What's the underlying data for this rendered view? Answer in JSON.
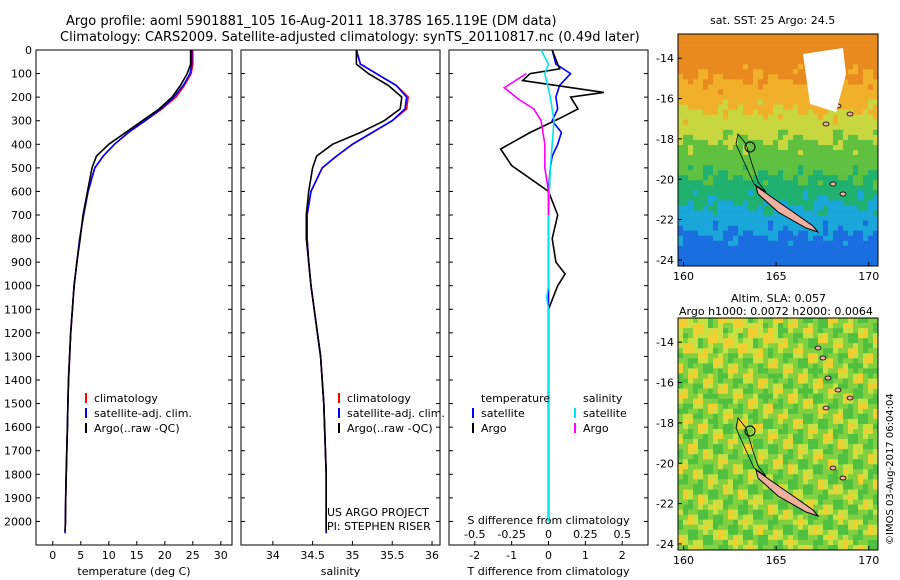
{
  "header": {
    "line1": "Argo profile: aoml 5901881_105 16-Aug-2011 18.378S 165.119E (DM data)",
    "line2": "Climatology: CARS2009. Satellite-adjusted climatology: synTS_20110817.nc (0.49d later)"
  },
  "credits": {
    "project": "US ARGO PROJECT",
    "pi": "PI: STEPHEN RISER"
  },
  "stamp": "©IMOS 03-Aug-2017 06:04:04",
  "map_sst": {
    "title": "sat. SST: 25 Argo: 24.5",
    "xticks": [
      "160",
      "165",
      "170"
    ],
    "yticks": [
      "-14",
      "-16",
      "-18",
      "-20",
      "-22",
      "-24"
    ]
  },
  "map_sla": {
    "title1": "Altim. SLA: 0.057",
    "title2": "Argo h1000: 0.0072 h2000: 0.0064",
    "xticks": [
      "160",
      "165",
      "170"
    ],
    "yticks": [
      "-14",
      "-16",
      "-18",
      "-20",
      "-22",
      "-24"
    ]
  },
  "colors": {
    "clim": "#ff0000",
    "sat": "#0000ff",
    "argo": "#000000",
    "sat_s": "#00e5ee",
    "argo_s": "#ff00ff"
  },
  "chart_data": [
    {
      "type": "line",
      "name": "temperature-profile",
      "xlabel": "temperature (deg C)",
      "ylabel": "",
      "xlim": [
        -3,
        32
      ],
      "ylim": [
        2100,
        0
      ],
      "xticks": [
        0,
        5,
        10,
        15,
        20,
        25,
        30
      ],
      "yticks": [
        0,
        100,
        200,
        300,
        400,
        500,
        600,
        700,
        800,
        900,
        1000,
        1100,
        1200,
        1300,
        1400,
        1500,
        1600,
        1700,
        1800,
        1900,
        2000
      ],
      "legend": [
        "climatology",
        "satellite-adj. clim.",
        "Argo(..raw -QC)"
      ],
      "series": [
        {
          "name": "climatology",
          "color_key": "clim",
          "points": [
            [
              25,
              0
            ],
            [
              25,
              60
            ],
            [
              24.7,
              100
            ],
            [
              23.5,
              150
            ],
            [
              22,
              200
            ],
            [
              19.5,
              250
            ],
            [
              16.5,
              300
            ],
            [
              13.5,
              350
            ],
            [
              11,
              400
            ],
            [
              9,
              450
            ],
            [
              7.5,
              500
            ],
            [
              6.3,
              600
            ],
            [
              5.5,
              700
            ],
            [
              4.8,
              800
            ],
            [
              4.3,
              900
            ],
            [
              3.8,
              1000
            ],
            [
              3.5,
              1100
            ],
            [
              3.2,
              1200
            ],
            [
              3,
              1300
            ],
            [
              2.8,
              1400
            ],
            [
              2.7,
              1500
            ],
            [
              2.6,
              1600
            ],
            [
              2.5,
              1700
            ],
            [
              2.4,
              1800
            ],
            [
              2.3,
              1900
            ],
            [
              2.25,
              2000
            ],
            [
              2.2,
              2050
            ]
          ]
        },
        {
          "name": "satellite-adj. clim.",
          "color_key": "sat",
          "points": [
            [
              24.8,
              0
            ],
            [
              24.8,
              60
            ],
            [
              24.5,
              100
            ],
            [
              23.3,
              150
            ],
            [
              21.6,
              200
            ],
            [
              19.3,
              250
            ],
            [
              16.5,
              300
            ],
            [
              13.5,
              350
            ],
            [
              11,
              400
            ],
            [
              9,
              450
            ],
            [
              7.5,
              500
            ],
            [
              6.3,
              600
            ],
            [
              5.5,
              700
            ],
            [
              4.8,
              800
            ],
            [
              4.3,
              900
            ],
            [
              3.8,
              1000
            ],
            [
              3.5,
              1100
            ],
            [
              3.2,
              1200
            ],
            [
              3,
              1300
            ],
            [
              2.8,
              1400
            ],
            [
              2.7,
              1500
            ],
            [
              2.6,
              1600
            ],
            [
              2.5,
              1700
            ],
            [
              2.4,
              1800
            ],
            [
              2.3,
              1900
            ],
            [
              2.25,
              2000
            ],
            [
              2.2,
              2050
            ]
          ]
        },
        {
          "name": "Argo(..raw -QC)",
          "color_key": "argo",
          "points": [
            [
              24.6,
              0
            ],
            [
              24.6,
              60
            ],
            [
              24,
              100
            ],
            [
              22.8,
              150
            ],
            [
              21.3,
              200
            ],
            [
              19,
              250
            ],
            [
              16,
              300
            ],
            [
              13,
              350
            ],
            [
              10,
              400
            ],
            [
              7.8,
              450
            ],
            [
              7,
              500
            ],
            [
              6.2,
              600
            ],
            [
              5.4,
              700
            ],
            [
              4.9,
              800
            ],
            [
              4.3,
              900
            ],
            [
              3.8,
              1000
            ],
            [
              3.5,
              1100
            ],
            [
              3.2,
              1200
            ],
            [
              3,
              1300
            ],
            [
              2.8,
              1400
            ],
            [
              2.7,
              1500
            ],
            [
              2.6,
              1600
            ],
            [
              2.5,
              1700
            ],
            [
              2.4,
              1800
            ],
            [
              2.3,
              1900
            ],
            [
              2.25,
              2000
            ],
            [
              2.2,
              2040
            ]
          ]
        }
      ]
    },
    {
      "type": "line",
      "name": "salinity-profile",
      "xlabel": "salinity",
      "ylabel": "",
      "xlim": [
        33.6,
        36.1
      ],
      "ylim": [
        2100,
        0
      ],
      "xticks": [
        34,
        34.5,
        35,
        35.5,
        36
      ],
      "xticklabels": [
        "34",
        "34.5",
        "35",
        "35.5",
        "36"
      ],
      "legend": [
        "climatology",
        "satellite-adj. clim.",
        "Argo(..raw -QC)"
      ],
      "series": [
        {
          "name": "climatology",
          "color_key": "clim",
          "points": [
            [
              35.05,
              0
            ],
            [
              35.1,
              60
            ],
            [
              35.3,
              100
            ],
            [
              35.55,
              150
            ],
            [
              35.7,
              200
            ],
            [
              35.68,
              250
            ],
            [
              35.5,
              300
            ],
            [
              35.25,
              350
            ],
            [
              35,
              400
            ],
            [
              34.8,
              450
            ],
            [
              34.62,
              500
            ],
            [
              34.48,
              600
            ],
            [
              34.43,
              700
            ],
            [
              34.43,
              800
            ],
            [
              34.45,
              900
            ],
            [
              34.48,
              1000
            ],
            [
              34.52,
              1100
            ],
            [
              34.56,
              1200
            ],
            [
              34.6,
              1300
            ],
            [
              34.62,
              1400
            ],
            [
              34.64,
              1500
            ],
            [
              34.65,
              1600
            ],
            [
              34.66,
              1700
            ],
            [
              34.67,
              1800
            ],
            [
              34.67,
              1900
            ],
            [
              34.67,
              2000
            ],
            [
              34.67,
              2050
            ]
          ]
        },
        {
          "name": "satellite-adj. clim.",
          "color_key": "sat",
          "points": [
            [
              35.05,
              0
            ],
            [
              35.1,
              60
            ],
            [
              35.3,
              100
            ],
            [
              35.55,
              150
            ],
            [
              35.68,
              200
            ],
            [
              35.66,
              250
            ],
            [
              35.5,
              300
            ],
            [
              35.25,
              350
            ],
            [
              35,
              400
            ],
            [
              34.8,
              450
            ],
            [
              34.62,
              500
            ],
            [
              34.48,
              600
            ],
            [
              34.43,
              700
            ],
            [
              34.43,
              800
            ],
            [
              34.45,
              900
            ],
            [
              34.48,
              1000
            ],
            [
              34.52,
              1100
            ],
            [
              34.56,
              1200
            ],
            [
              34.6,
              1300
            ],
            [
              34.62,
              1400
            ],
            [
              34.64,
              1500
            ],
            [
              34.65,
              1600
            ],
            [
              34.66,
              1700
            ],
            [
              34.67,
              1800
            ],
            [
              34.67,
              1900
            ],
            [
              34.67,
              2000
            ],
            [
              34.67,
              2050
            ]
          ]
        },
        {
          "name": "Argo(..raw -QC)",
          "color_key": "argo",
          "points": [
            [
              35.05,
              0
            ],
            [
              35.05,
              60
            ],
            [
              35.2,
              100
            ],
            [
              35.45,
              150
            ],
            [
              35.62,
              200
            ],
            [
              35.6,
              250
            ],
            [
              35.4,
              300
            ],
            [
              35.1,
              350
            ],
            [
              34.75,
              400
            ],
            [
              34.55,
              450
            ],
            [
              34.5,
              500
            ],
            [
              34.45,
              600
            ],
            [
              34.42,
              700
            ],
            [
              34.42,
              800
            ],
            [
              34.45,
              900
            ],
            [
              34.48,
              1000
            ],
            [
              34.52,
              1100
            ],
            [
              34.56,
              1200
            ],
            [
              34.6,
              1300
            ],
            [
              34.62,
              1400
            ],
            [
              34.64,
              1500
            ],
            [
              34.65,
              1600
            ],
            [
              34.66,
              1700
            ],
            [
              34.67,
              1800
            ],
            [
              34.67,
              1900
            ],
            [
              34.67,
              2000
            ],
            [
              34.67,
              2040
            ]
          ]
        }
      ]
    },
    {
      "type": "line",
      "name": "difference-from-climatology",
      "xlabel": "T difference from climatology",
      "xlabel2": "S difference from climatology",
      "xlim": [
        -2.7,
        2.7
      ],
      "ylim": [
        2100,
        0
      ],
      "xticks": [
        -2,
        -1,
        0,
        1,
        2
      ],
      "xticklabels": [
        "-2",
        "-1",
        "0",
        "1",
        "2"
      ],
      "xticks2": [
        -2,
        -1,
        0,
        1,
        2
      ],
      "xticklabels2": [
        "-0.5",
        "-0.25",
        "0",
        "0.25",
        "0.5"
      ],
      "legend_left_title": "temperature",
      "legend_right_title": "salinity",
      "legend": [
        "satellite",
        "Argo",
        "satellite",
        "Argo"
      ],
      "series": [
        {
          "name": "satellite",
          "color_key": "sat",
          "points": [
            [
              0.1,
              0
            ],
            [
              0.2,
              60
            ],
            [
              0.6,
              100
            ],
            [
              0.3,
              150
            ],
            [
              0.2,
              200
            ],
            [
              0.25,
              250
            ],
            [
              0.1,
              300
            ],
            [
              0.35,
              350
            ],
            [
              0.25,
              400
            ],
            [
              0.1,
              450
            ],
            [
              0.05,
              500
            ],
            [
              0,
              600
            ],
            [
              0,
              700
            ],
            [
              0,
              1000
            ],
            [
              0,
              2000
            ]
          ]
        },
        {
          "name": "Argo",
          "color_key": "argo",
          "points": [
            [
              0.1,
              0
            ],
            [
              0.3,
              80
            ],
            [
              -0.5,
              100
            ],
            [
              -0.7,
              130
            ],
            [
              1.5,
              180
            ],
            [
              0.6,
              200
            ],
            [
              0.8,
              250
            ],
            [
              0.3,
              290
            ],
            [
              -0.5,
              350
            ],
            [
              -1.3,
              420
            ],
            [
              -1,
              490
            ],
            [
              0,
              600
            ],
            [
              0.25,
              700
            ],
            [
              0.1,
              800
            ],
            [
              0.2,
              900
            ],
            [
              0.45,
              950
            ],
            [
              0.25,
              1000
            ],
            [
              0,
              1100
            ],
            [
              0,
              2000
            ]
          ]
        },
        {
          "name": "satellite",
          "color_key": "sat_s",
          "points": [
            [
              -0.2,
              0
            ],
            [
              0,
              60
            ],
            [
              -0.1,
              100
            ],
            [
              0.05,
              200
            ],
            [
              0.15,
              300
            ],
            [
              0.1,
              400
            ],
            [
              0.05,
              500
            ],
            [
              0,
              700
            ],
            [
              0,
              1000
            ],
            [
              -0.05,
              1050
            ],
            [
              0,
              1100
            ],
            [
              0,
              2000
            ]
          ]
        },
        {
          "name": "Argo",
          "color_key": "argo_s",
          "points": [
            [
              -0.6,
              100
            ],
            [
              -1.2,
              160
            ],
            [
              -0.8,
              210
            ],
            [
              -0.4,
              250
            ],
            [
              -0.2,
              300
            ],
            [
              -0.1,
              400
            ],
            [
              -0.1,
              500
            ],
            [
              0,
              600
            ],
            [
              0,
              700
            ]
          ]
        }
      ]
    }
  ],
  "legends": {
    "temperature": [
      "climatology",
      "satellite-adj. clim.",
      "Argo(..raw -QC)"
    ],
    "salinity": [
      "climatology",
      "satellite-adj. clim.",
      "Argo(..raw -QC)"
    ],
    "diff_t_title": "temperature",
    "diff_s_title": "salinity",
    "diff_t": [
      "satellite",
      "Argo"
    ],
    "diff_s": [
      "satellite",
      "Argo"
    ]
  }
}
